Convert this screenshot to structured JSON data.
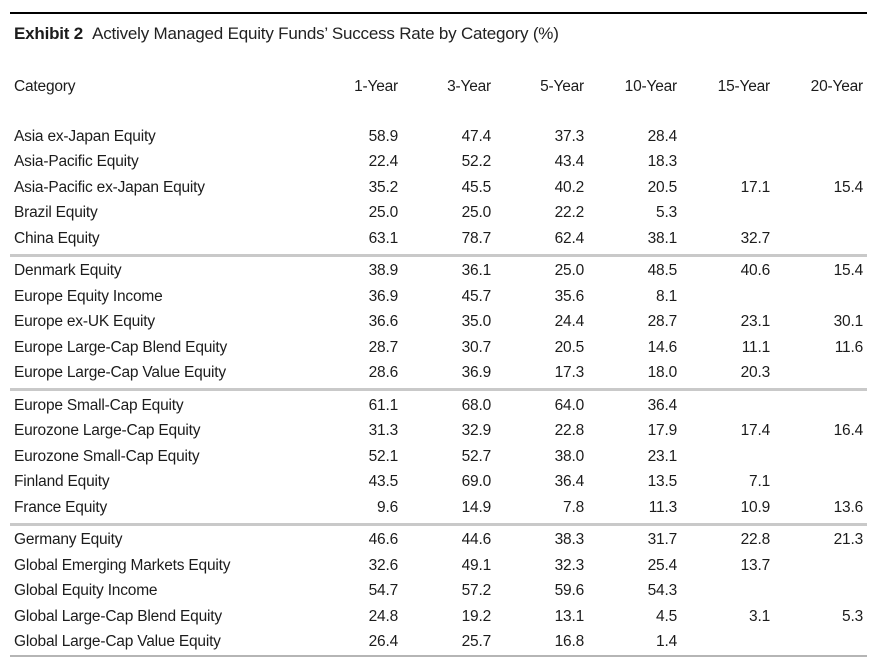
{
  "colors": {
    "text": "#1c1c1c",
    "top_rule": "#000000",
    "separator": "#c9c9c9",
    "bottom_rule": "#b5b5b5",
    "page_bg": "#ffffff"
  },
  "header": {
    "exhibit_label": "Exhibit 2",
    "exhibit_title": "Actively Managed Equity Funds’ Success Rate by Category (%)"
  },
  "table": {
    "columns": [
      "Category",
      "1-Year",
      "3-Year",
      "5-Year",
      "10-Year",
      "15-Year",
      "20-Year"
    ],
    "groups": [
      [
        {
          "category": "Asia ex-Japan Equity",
          "values": [
            "58.9",
            "47.4",
            "37.3",
            "28.4",
            "",
            ""
          ]
        },
        {
          "category": "Asia-Pacific Equity",
          "values": [
            "22.4",
            "52.2",
            "43.4",
            "18.3",
            "",
            ""
          ]
        },
        {
          "category": "Asia-Pacific ex-Japan Equity",
          "values": [
            "35.2",
            "45.5",
            "40.2",
            "20.5",
            "17.1",
            "15.4"
          ]
        },
        {
          "category": "Brazil Equity",
          "values": [
            "25.0",
            "25.0",
            "22.2",
            "5.3",
            "",
            ""
          ]
        },
        {
          "category": "China Equity",
          "values": [
            "63.1",
            "78.7",
            "62.4",
            "38.1",
            "32.7",
            ""
          ]
        }
      ],
      [
        {
          "category": "Denmark Equity",
          "values": [
            "38.9",
            "36.1",
            "25.0",
            "48.5",
            "40.6",
            "15.4"
          ]
        },
        {
          "category": "Europe Equity Income",
          "values": [
            "36.9",
            "45.7",
            "35.6",
            "8.1",
            "",
            ""
          ]
        },
        {
          "category": "Europe ex-UK Equity",
          "values": [
            "36.6",
            "35.0",
            "24.4",
            "28.7",
            "23.1",
            "30.1"
          ]
        },
        {
          "category": "Europe Large-Cap Blend Equity",
          "values": [
            "28.7",
            "30.7",
            "20.5",
            "14.6",
            "11.1",
            "11.6"
          ]
        },
        {
          "category": "Europe Large-Cap Value Equity",
          "values": [
            "28.6",
            "36.9",
            "17.3",
            "18.0",
            "20.3",
            ""
          ]
        }
      ],
      [
        {
          "category": "Europe Small-Cap Equity",
          "values": [
            "61.1",
            "68.0",
            "64.0",
            "36.4",
            "",
            ""
          ]
        },
        {
          "category": "Eurozone Large-Cap Equity",
          "values": [
            "31.3",
            "32.9",
            "22.8",
            "17.9",
            "17.4",
            "16.4"
          ]
        },
        {
          "category": "Eurozone Small-Cap Equity",
          "values": [
            "52.1",
            "52.7",
            "38.0",
            "23.1",
            "",
            ""
          ]
        },
        {
          "category": "Finland Equity",
          "values": [
            "43.5",
            "69.0",
            "36.4",
            "13.5",
            "7.1",
            ""
          ]
        },
        {
          "category": "France Equity",
          "values": [
            "9.6",
            "14.9",
            "7.8",
            "11.3",
            "10.9",
            "13.6"
          ]
        }
      ],
      [
        {
          "category": "Germany Equity",
          "values": [
            "46.6",
            "44.6",
            "38.3",
            "31.7",
            "22.8",
            "21.3"
          ]
        },
        {
          "category": "Global Emerging Markets Equity",
          "values": [
            "32.6",
            "49.1",
            "32.3",
            "25.4",
            "13.7",
            ""
          ]
        },
        {
          "category": "Global Equity Income",
          "values": [
            "54.7",
            "57.2",
            "59.6",
            "54.3",
            "",
            ""
          ]
        },
        {
          "category": "Global Large-Cap Blend Equity",
          "values": [
            "24.8",
            "19.2",
            "13.1",
            "4.5",
            "3.1",
            "5.3"
          ]
        },
        {
          "category": "Global Large-Cap Value Equity",
          "values": [
            "26.4",
            "25.7",
            "16.8",
            "1.4",
            "",
            ""
          ]
        }
      ]
    ]
  }
}
